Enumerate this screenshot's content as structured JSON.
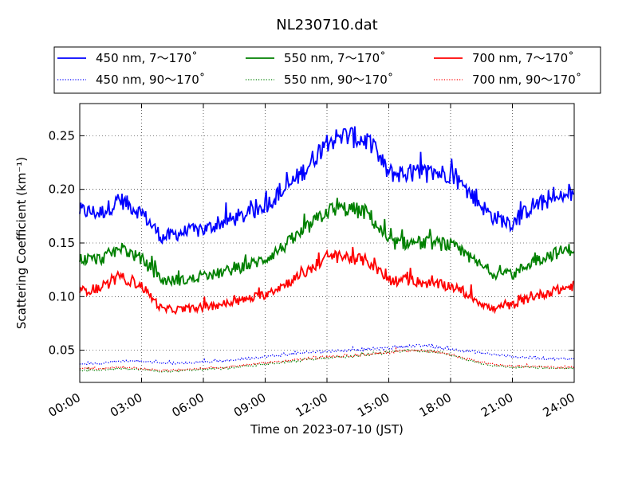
{
  "chart_data": {
    "type": "line",
    "title": "NL230710.dat",
    "xlabel": "Time on 2023-07-10 (JST)",
    "ylabel": "Scattering Coefficient (km⁻¹)",
    "xlim": [
      "00:00",
      "24:00"
    ],
    "ylim": [
      0.02,
      0.28
    ],
    "x_ticks": [
      "00:00",
      "03:00",
      "06:00",
      "09:00",
      "12:00",
      "15:00",
      "18:00",
      "21:00",
      "24:00"
    ],
    "y_ticks": [
      "0.05",
      "0.10",
      "0.15",
      "0.20",
      "0.25"
    ],
    "grid": true,
    "legend_position": "top, above plot",
    "x_unit": "hour",
    "x": [
      0,
      1,
      2,
      3,
      4,
      5,
      6,
      7,
      8,
      9,
      10,
      11,
      12,
      13,
      14,
      15,
      16,
      17,
      18,
      19,
      20,
      21,
      22,
      23,
      24
    ],
    "series": [
      {
        "name": "450 nm, 7～170˚",
        "color": "#0000ff",
        "style": "solid",
        "values": [
          0.18,
          0.178,
          0.19,
          0.178,
          0.155,
          0.16,
          0.162,
          0.17,
          0.175,
          0.185,
          0.2,
          0.22,
          0.245,
          0.25,
          0.245,
          0.215,
          0.215,
          0.215,
          0.215,
          0.195,
          0.175,
          0.168,
          0.185,
          0.19,
          0.195
        ]
      },
      {
        "name": "450 nm, 90～170˚",
        "color": "#0000ff",
        "style": "dotted",
        "values": [
          0.037,
          0.038,
          0.04,
          0.04,
          0.038,
          0.038,
          0.039,
          0.04,
          0.042,
          0.044,
          0.046,
          0.048,
          0.049,
          0.05,
          0.051,
          0.052,
          0.054,
          0.054,
          0.051,
          0.049,
          0.046,
          0.044,
          0.043,
          0.042,
          0.042
        ]
      },
      {
        "name": "550 nm, 7～170˚",
        "color": "#008000",
        "style": "solid",
        "values": [
          0.135,
          0.135,
          0.145,
          0.135,
          0.115,
          0.115,
          0.118,
          0.123,
          0.128,
          0.135,
          0.148,
          0.163,
          0.18,
          0.182,
          0.178,
          0.15,
          0.15,
          0.15,
          0.148,
          0.135,
          0.122,
          0.12,
          0.133,
          0.14,
          0.145
        ]
      },
      {
        "name": "550 nm, 90～170˚",
        "color": "#008000",
        "style": "dotted",
        "values": [
          0.031,
          0.032,
          0.033,
          0.032,
          0.03,
          0.031,
          0.032,
          0.033,
          0.035,
          0.037,
          0.039,
          0.041,
          0.043,
          0.044,
          0.046,
          0.048,
          0.05,
          0.049,
          0.046,
          0.04,
          0.036,
          0.034,
          0.034,
          0.033,
          0.033
        ]
      },
      {
        "name": "700 nm, 7～170˚",
        "color": "#ff0000",
        "style": "solid",
        "values": [
          0.105,
          0.108,
          0.118,
          0.11,
          0.088,
          0.088,
          0.09,
          0.093,
          0.097,
          0.102,
          0.112,
          0.123,
          0.137,
          0.137,
          0.133,
          0.115,
          0.115,
          0.112,
          0.11,
          0.1,
          0.088,
          0.092,
          0.1,
          0.105,
          0.11
        ]
      },
      {
        "name": "700 nm, 90～170˚",
        "color": "#ff0000",
        "style": "dotted",
        "values": [
          0.033,
          0.033,
          0.034,
          0.033,
          0.031,
          0.032,
          0.033,
          0.034,
          0.036,
          0.038,
          0.04,
          0.042,
          0.044,
          0.045,
          0.046,
          0.048,
          0.05,
          0.049,
          0.046,
          0.041,
          0.037,
          0.035,
          0.035,
          0.034,
          0.034
        ]
      }
    ]
  }
}
